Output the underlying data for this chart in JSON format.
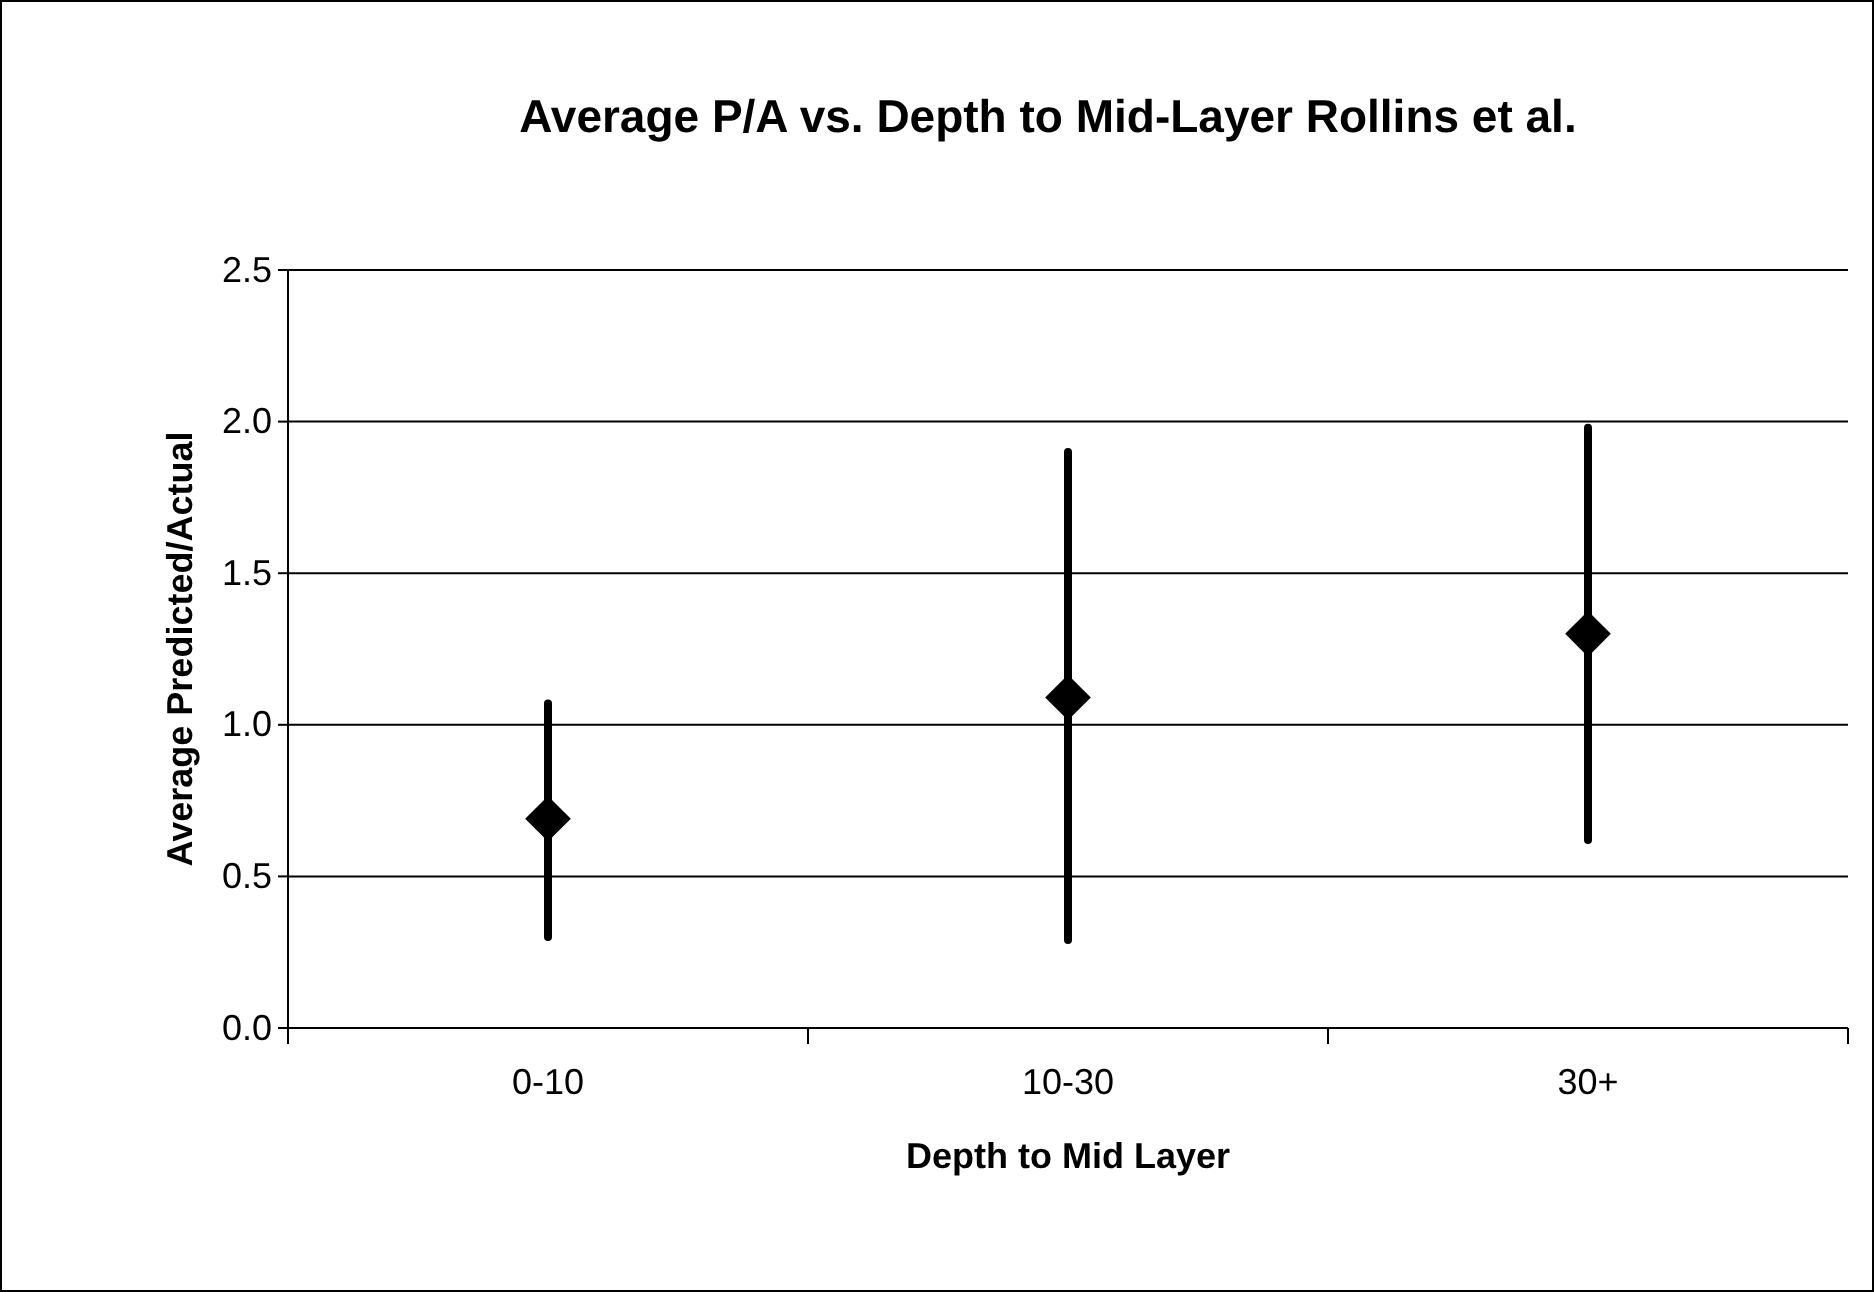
{
  "chart_data": {
    "type": "scatter",
    "title": "Average P/A vs. Depth to Mid-Layer Rollins et al.",
    "xlabel": "Depth to Mid Layer",
    "ylabel": "Average Predicted/Actual",
    "categories": [
      "0-10",
      "10-30",
      "30+"
    ],
    "series": [
      {
        "color": "#000000",
        "values": [
          0.69,
          1.09,
          1.3
        ],
        "errors": [
          [
            0.3,
            1.07
          ],
          [
            0.29,
            1.9
          ],
          [
            0.62,
            1.98
          ]
        ]
      }
    ],
    "ylim": [
      0,
      2.5
    ],
    "yticks": [
      {
        "value": 0,
        "label": "0.0"
      },
      {
        "value": 0.5,
        "label": "0.5"
      },
      {
        "value": 1,
        "label": "1.0"
      },
      {
        "value": 1.5,
        "label": "1.5"
      },
      {
        "value": 2,
        "label": "2.0"
      },
      {
        "value": 2.5,
        "label": "2.5"
      }
    ],
    "grid": "y",
    "marker": "diamond"
  }
}
